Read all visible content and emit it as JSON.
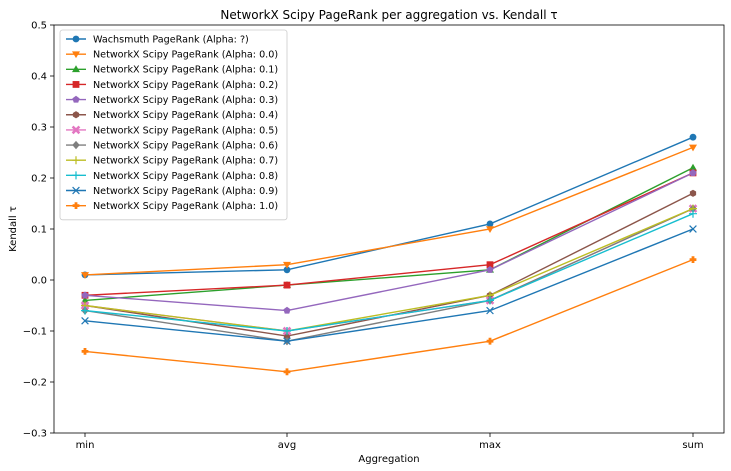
{
  "chart_data": {
    "type": "line",
    "title": "NetworkX Scipy PageRank per aggregation vs. Kendall τ",
    "xlabel": "Aggregation",
    "ylabel": "Kendall τ",
    "categories": [
      "min",
      "avg",
      "max",
      "sum"
    ],
    "ylim": [
      -0.3,
      0.5
    ],
    "yticks": [
      -0.3,
      -0.2,
      -0.1,
      0.0,
      0.1,
      0.2,
      0.3,
      0.4,
      0.5
    ],
    "ytick_labels": [
      "−0.3",
      "−0.2",
      "−0.1",
      "0.0",
      "0.1",
      "0.2",
      "0.3",
      "0.4",
      "0.5"
    ],
    "grid": false,
    "legend_position": "upper-left",
    "series": [
      {
        "name": "Wachsmuth PageRank (Alpha: ?)",
        "color": "#1f77b4",
        "marker": "circle",
        "values": [
          0.01,
          0.02,
          0.11,
          0.28
        ]
      },
      {
        "name": "NetworkX Scipy PageRank (Alpha: 0.0)",
        "color": "#ff7f0e",
        "marker": "triangle-down",
        "values": [
          0.01,
          0.03,
          0.1,
          0.26
        ]
      },
      {
        "name": "NetworkX Scipy PageRank (Alpha: 0.1)",
        "color": "#2ca02c",
        "marker": "triangle-up",
        "values": [
          -0.04,
          -0.01,
          0.02,
          0.22
        ]
      },
      {
        "name": "NetworkX Scipy PageRank (Alpha: 0.2)",
        "color": "#d62728",
        "marker": "square",
        "values": [
          -0.03,
          -0.01,
          0.03,
          0.21
        ]
      },
      {
        "name": "NetworkX Scipy PageRank (Alpha: 0.3)",
        "color": "#9467bd",
        "marker": "pentagon",
        "values": [
          -0.03,
          -0.06,
          0.02,
          0.21
        ]
      },
      {
        "name": "NetworkX Scipy PageRank (Alpha: 0.4)",
        "color": "#8c564b",
        "marker": "hexagon",
        "values": [
          -0.05,
          -0.11,
          -0.03,
          0.17
        ]
      },
      {
        "name": "NetworkX Scipy PageRank (Alpha: 0.5)",
        "color": "#e377c2",
        "marker": "x-filled",
        "values": [
          -0.05,
          -0.1,
          -0.04,
          0.14
        ]
      },
      {
        "name": "NetworkX Scipy PageRank (Alpha: 0.6)",
        "color": "#7f7f7f",
        "marker": "diamond",
        "values": [
          -0.06,
          -0.12,
          -0.04,
          0.14
        ]
      },
      {
        "name": "NetworkX Scipy PageRank (Alpha: 0.7)",
        "color": "#bcbd22",
        "marker": "plus-thin",
        "values": [
          -0.05,
          -0.1,
          -0.03,
          0.14
        ]
      },
      {
        "name": "NetworkX Scipy PageRank (Alpha: 0.8)",
        "color": "#17becf",
        "marker": "plus-thin",
        "values": [
          -0.06,
          -0.1,
          -0.04,
          0.13
        ]
      },
      {
        "name": "NetworkX Scipy PageRank (Alpha: 0.9)",
        "color": "#1f77b4",
        "marker": "x",
        "values": [
          -0.08,
          -0.12,
          -0.06,
          0.1
        ]
      },
      {
        "name": "NetworkX Scipy PageRank (Alpha: 1.0)",
        "color": "#ff7f0e",
        "marker": "plus-filled",
        "values": [
          -0.14,
          -0.18,
          -0.12,
          0.04
        ]
      }
    ]
  }
}
